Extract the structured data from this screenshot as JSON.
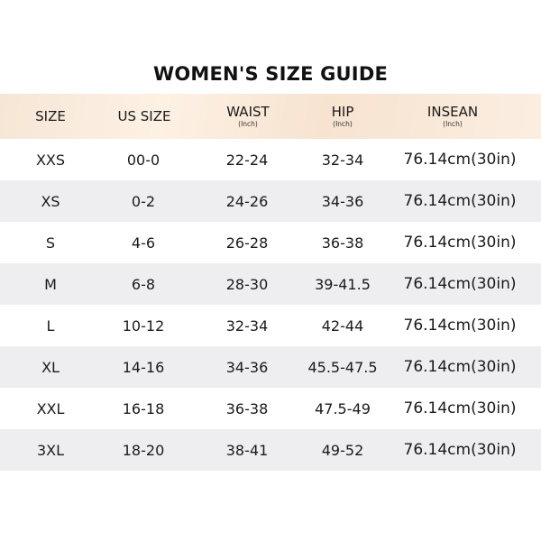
{
  "title": "WOMEN'S SIZE GUIDE",
  "header": {
    "columns": [
      {
        "label": "SIZE",
        "unit": ""
      },
      {
        "label": "US SIZE",
        "unit": ""
      },
      {
        "label": "WAIST",
        "unit": "(Inch)"
      },
      {
        "label": "HIP",
        "unit": "(Inch)"
      },
      {
        "label": "INSEAN",
        "unit": "(Inch)"
      }
    ]
  },
  "rows": [
    [
      "XXS",
      "00-0",
      "22-24",
      "32-34",
      "76.14cm(30in)"
    ],
    [
      "XS",
      "0-2",
      "24-26",
      "34-36",
      "76.14cm(30in)"
    ],
    [
      "S",
      "4-6",
      "26-28",
      "36-38",
      "76.14cm(30in)"
    ],
    [
      "M",
      "6-8",
      "28-30",
      "39-41.5",
      "76.14cm(30in)"
    ],
    [
      "L",
      "10-12",
      "32-34",
      "42-44",
      "76.14cm(30in)"
    ],
    [
      "XL",
      "14-16",
      "34-36",
      "45.5-47.5",
      "76.14cm(30in)"
    ],
    [
      "XXL",
      "16-18",
      "36-38",
      "47.5-49",
      "76.14cm(30in)"
    ],
    [
      "3XL",
      "18-20",
      "38-41",
      "49-52",
      "76.14cm(30in)"
    ]
  ],
  "colors": {
    "header_bg": "#fdf1e4",
    "row_shade": "#eeeef0",
    "text": "#1a1a1a"
  }
}
